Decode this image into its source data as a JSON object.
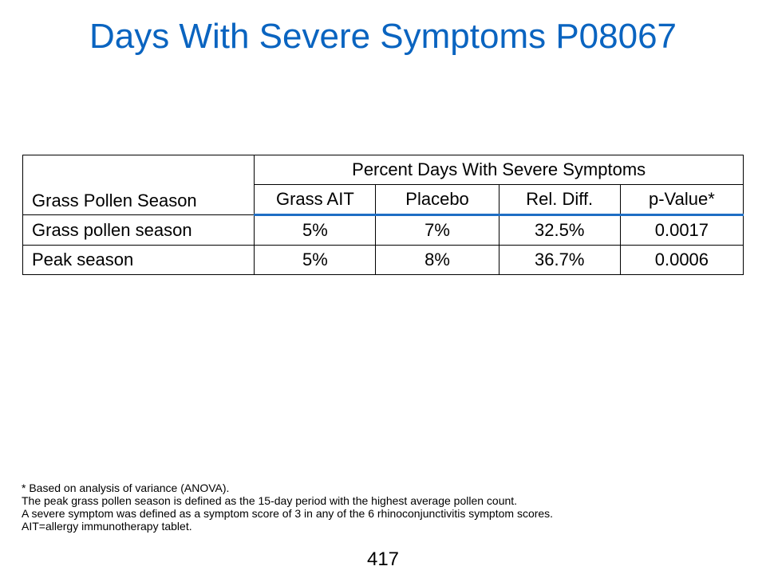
{
  "slide": {
    "title": "Days With Severe Symptoms P08067",
    "page_number": "417"
  },
  "table": {
    "row_header_label": "Grass Pollen Season",
    "group_header": "Percent Days With Severe Symptoms",
    "column_headers": [
      "Grass AIT",
      "Placebo",
      "Rel. Diff.",
      "p-Value*"
    ],
    "rows": [
      {
        "label": "Grass pollen season",
        "values": [
          "5%",
          "7%",
          "32.5%",
          "0.0017"
        ]
      },
      {
        "label": "Peak season",
        "values": [
          "5%",
          "8%",
          "36.7%",
          "0.0006"
        ]
      }
    ]
  },
  "footnotes": [
    "* Based on analysis of variance (ANOVA).",
    "The peak grass pollen season is defined as the 15-day period with the highest average pollen count.",
    "A severe symptom was defined  as a symptom  score of 3 in any of the 6 rhinoconjunctivitis symptom scores.",
    "AIT=allergy immunotherapy tablet."
  ],
  "colors": {
    "title": "#0a64c0",
    "header_rule": "#1f6ec4"
  }
}
